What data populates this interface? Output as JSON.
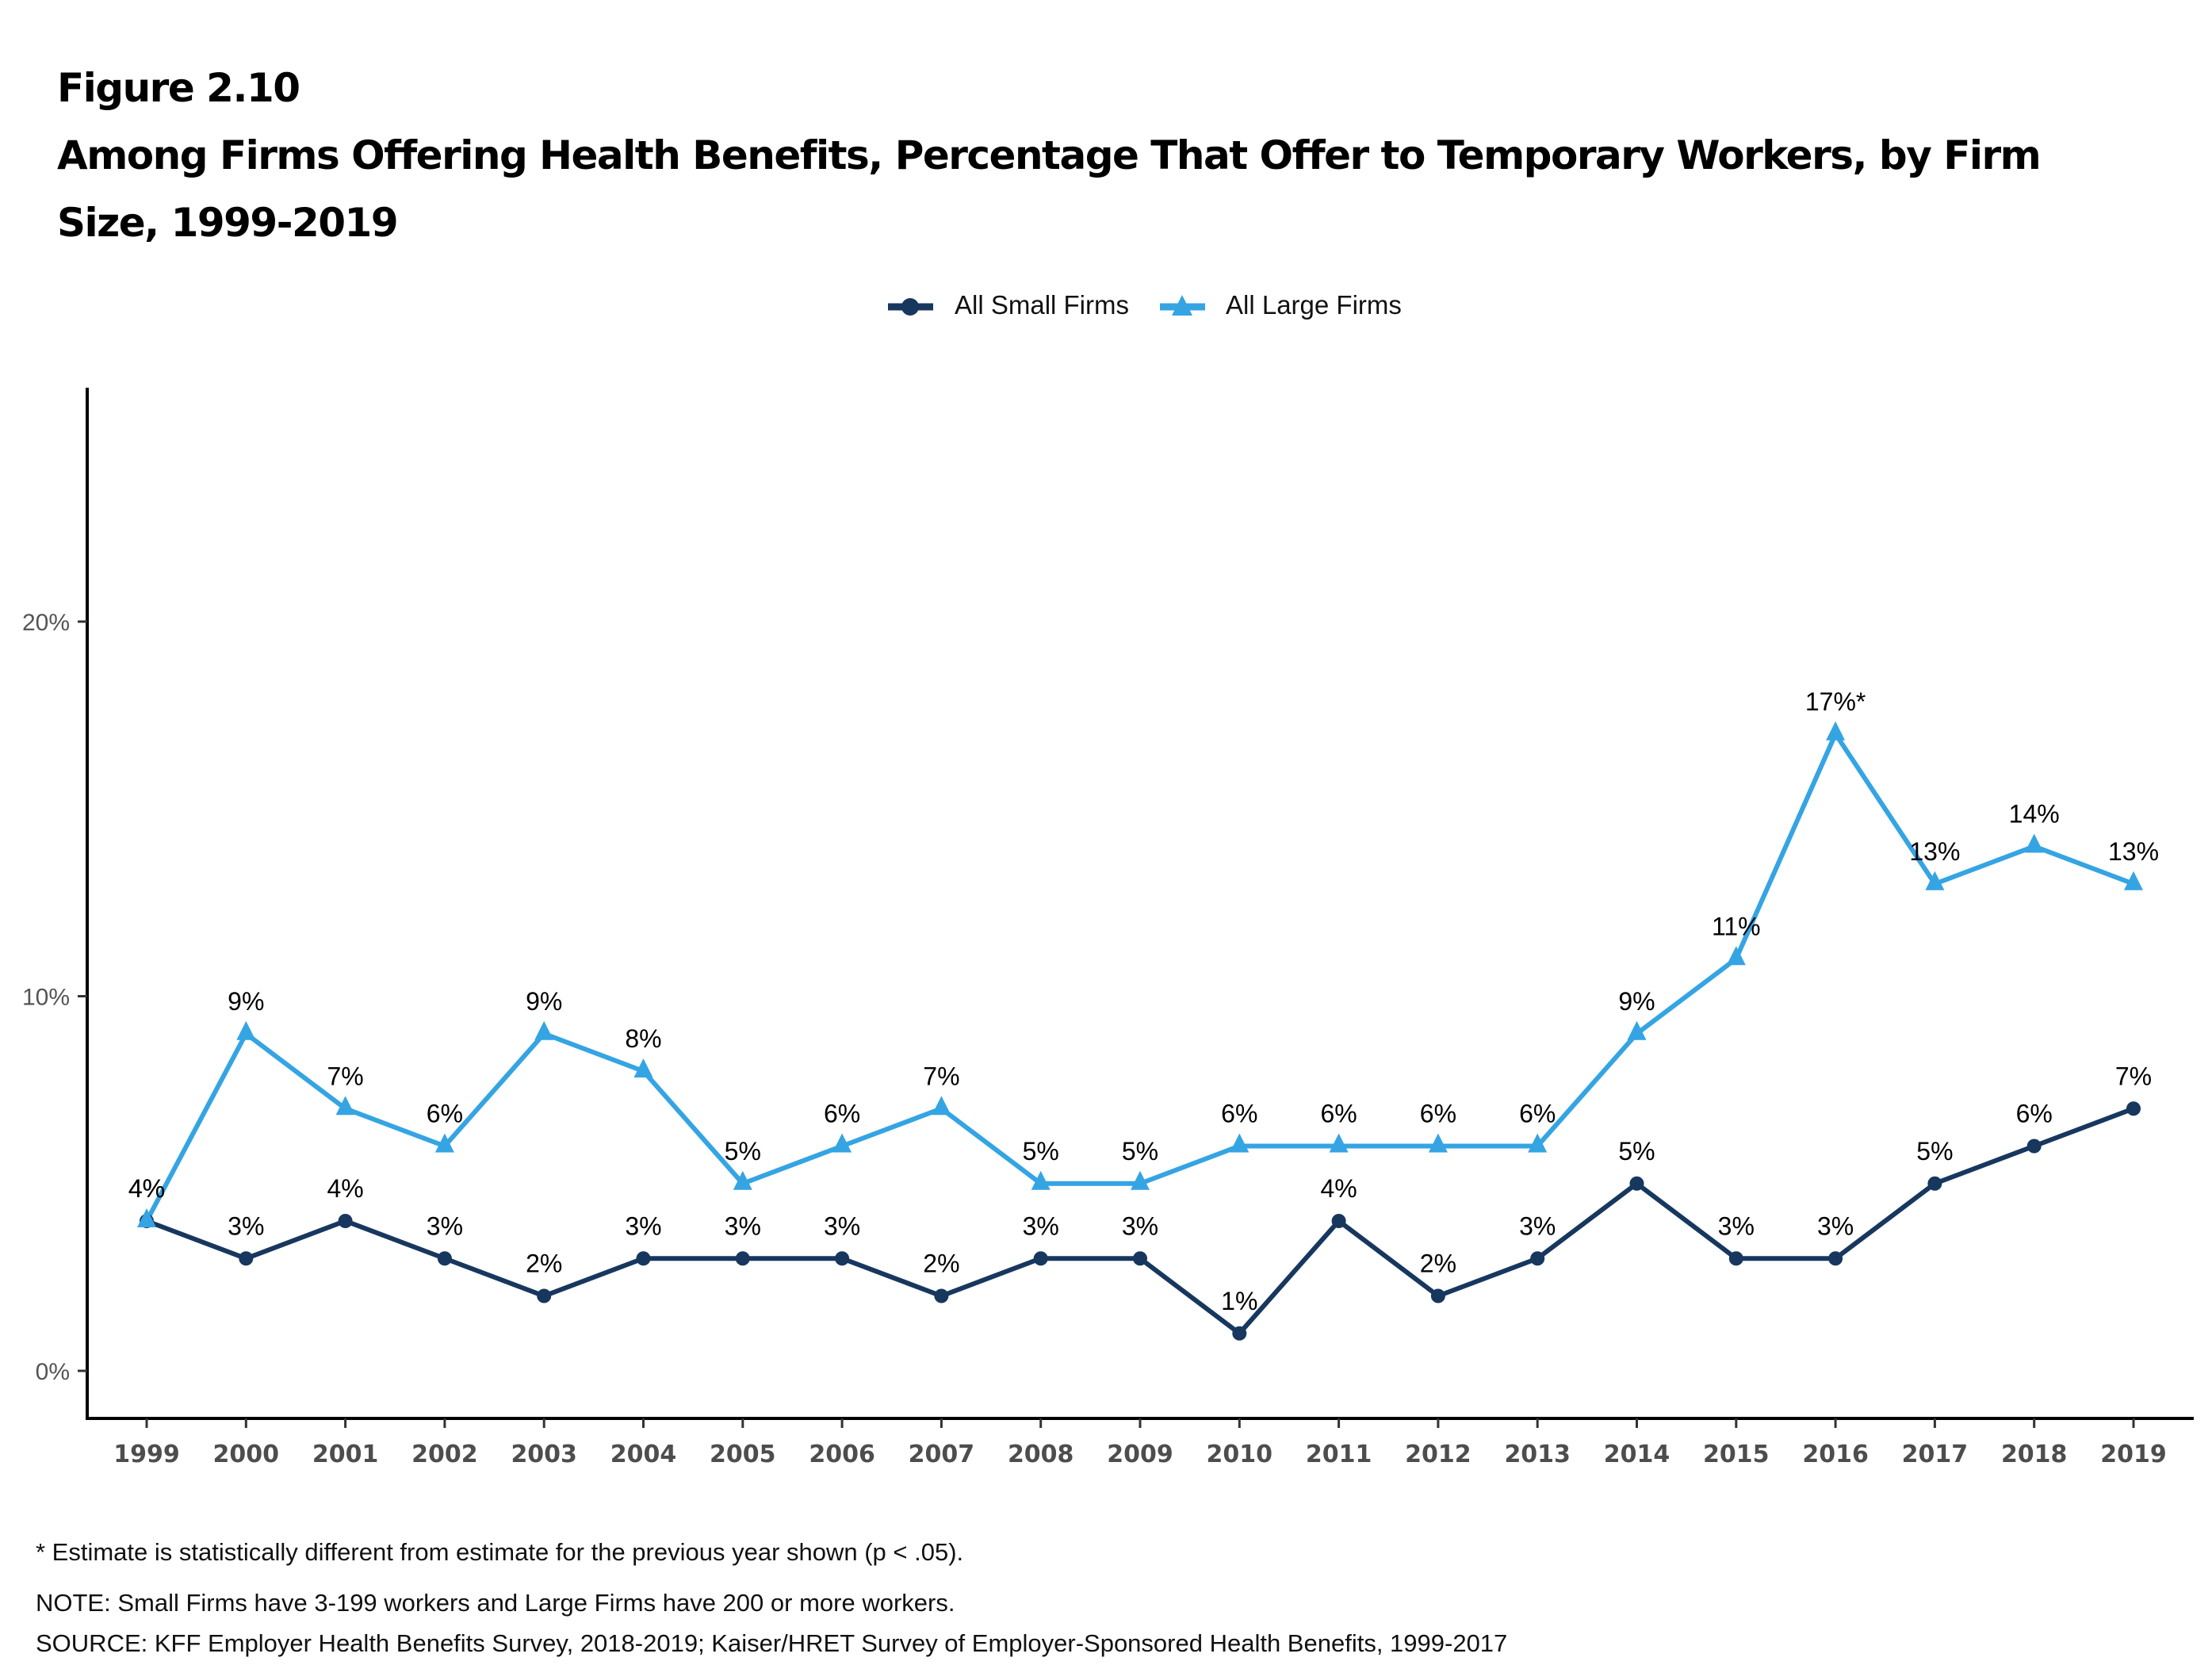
{
  "figure_number": "Figure 2.10",
  "title_line_1": "Among Firms Offering Health Benefits, Percentage That Offer to Temporary Workers, by Firm",
  "title_line_2": "Size, 1999-2019",
  "legend": [
    {
      "label": "All Small Firms",
      "marker": "circle-icon",
      "color": "#17375e"
    },
    {
      "label": "All Large Firms",
      "marker": "triangle-icon",
      "color": "#35a4e3"
    }
  ],
  "footnotes": {
    "significance": "* Estimate is statistically different from estimate for the previous year shown (p < .05).",
    "note": "NOTE: Small Firms have 3-199 workers and Large Firms have 200 or more workers.",
    "source": "SOURCE: KFF Employer Health Benefits Survey, 2018-2019; Kaiser/HRET Survey of Employer-Sponsored Health Benefits, 1999-2017"
  },
  "chart_data": {
    "type": "line",
    "title": "Among Firms Offering Health Benefits, Percentage That Offer to Temporary Workers, by Firm Size, 1999-2019",
    "xlabel": "",
    "ylabel": "",
    "x": [
      "1999",
      "2000",
      "2001",
      "2002",
      "2003",
      "2004",
      "2005",
      "2006",
      "2007",
      "2008",
      "2009",
      "2010",
      "2011",
      "2012",
      "2013",
      "2014",
      "2015",
      "2016",
      "2017",
      "2018",
      "2019"
    ],
    "yticks": [
      0,
      10,
      20
    ],
    "ytick_labels": [
      "0%",
      "10%",
      "20%"
    ],
    "ylim": [
      -1.2,
      18.9
    ],
    "grid": false,
    "legend_position": "top-center",
    "series": [
      {
        "name": "All Small Firms",
        "color": "#17375e",
        "marker": "circle",
        "values": [
          4,
          3,
          4,
          3,
          2,
          3,
          3,
          3,
          2,
          3,
          3,
          1,
          4,
          2,
          3,
          5,
          3,
          3,
          5,
          6,
          7
        ],
        "labels": [
          "4%",
          "3%",
          "4%",
          "3%",
          "2%",
          "3%",
          "3%",
          "3%",
          "2%",
          "3%",
          "3%",
          "1%",
          "4%",
          "2%",
          "3%",
          "5%",
          "3%",
          "3%",
          "5%",
          "6%",
          "7%"
        ]
      },
      {
        "name": "All Large Firms",
        "color": "#35a4e3",
        "marker": "triangle",
        "values": [
          4,
          9,
          7,
          6,
          9,
          8,
          5,
          6,
          7,
          5,
          5,
          6,
          6,
          6,
          6,
          9,
          11,
          17,
          13,
          14,
          13
        ],
        "labels": [
          "4%",
          "9%",
          "7%",
          "6%",
          "9%",
          "8%",
          "5%",
          "6%",
          "7%",
          "5%",
          "5%",
          "6%",
          "6%",
          "6%",
          "6%",
          "9%",
          "11%",
          "17%*",
          "13%",
          "14%",
          "13%"
        ]
      }
    ],
    "annotations": [
      "17%* — statistically different from previous year"
    ]
  }
}
